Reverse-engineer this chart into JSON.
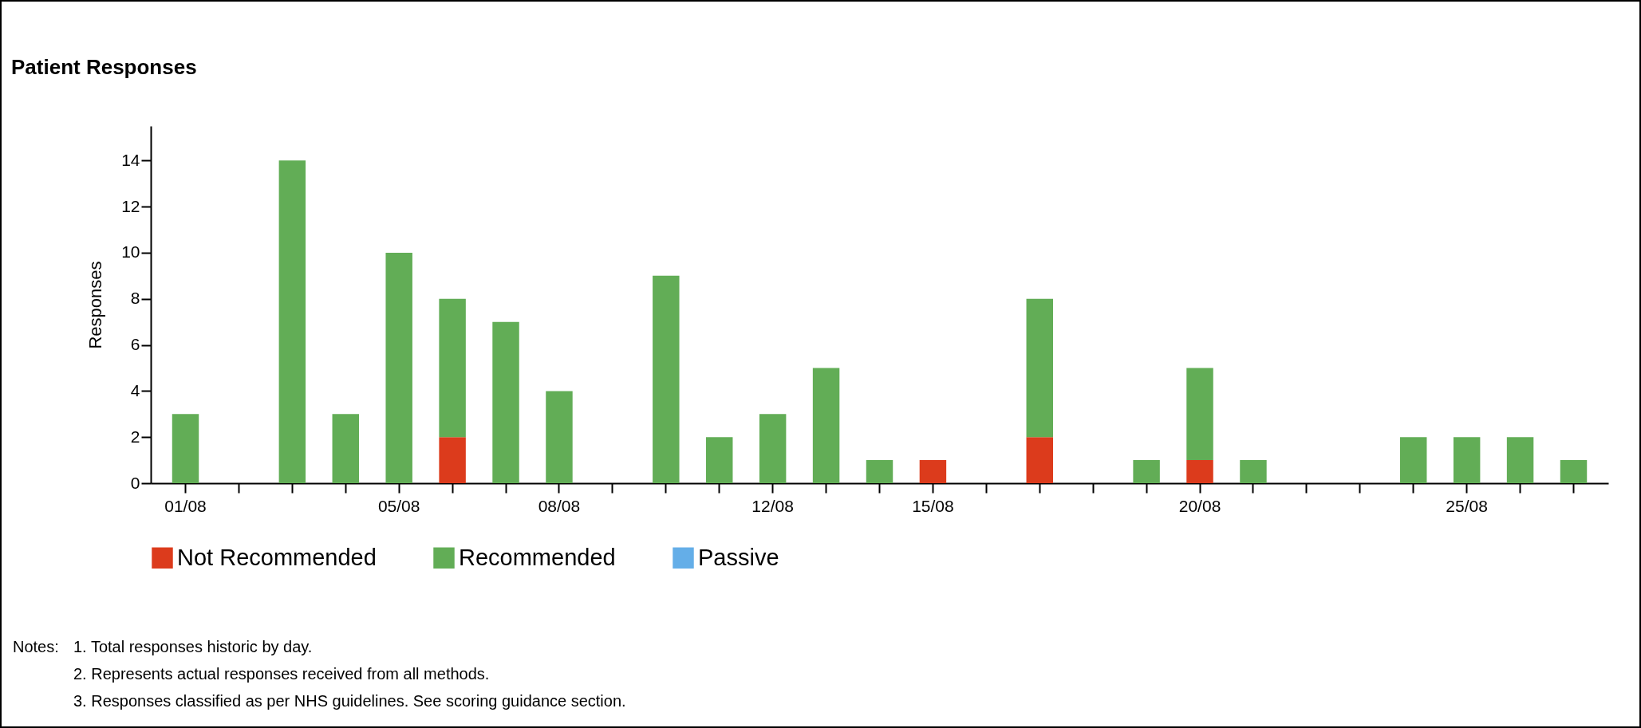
{
  "chart_data": {
    "type": "bar",
    "title": "Patient Responses",
    "ylabel": "Responses",
    "stacked": true,
    "categories": [
      "01/08",
      null,
      null,
      null,
      "05/08",
      null,
      null,
      "08/08",
      null,
      null,
      null,
      "12/08",
      null,
      null,
      "15/08",
      null,
      null,
      null,
      null,
      "20/08",
      null,
      null,
      null,
      null,
      "25/08",
      null,
      null
    ],
    "series": [
      {
        "name": "Not Recommended",
        "color": "#dc3b1c",
        "values": [
          null,
          null,
          null,
          null,
          null,
          2,
          null,
          null,
          null,
          null,
          null,
          null,
          null,
          null,
          1,
          null,
          2,
          null,
          null,
          1,
          null,
          null,
          null,
          null,
          null,
          null,
          null
        ]
      },
      {
        "name": "Recommended",
        "color": "#62ad56",
        "values": [
          3,
          null,
          14,
          3,
          10,
          6,
          7,
          4,
          null,
          9,
          2,
          3,
          5,
          1,
          null,
          null,
          6,
          null,
          1,
          4,
          1,
          null,
          null,
          2,
          2,
          2,
          1
        ]
      },
      {
        "name": "Passive",
        "color": "#64aee8",
        "values": [
          null,
          null,
          null,
          null,
          null,
          null,
          null,
          null,
          null,
          null,
          null,
          null,
          null,
          null,
          null,
          null,
          null,
          null,
          null,
          null,
          null,
          null,
          null,
          null,
          null,
          null,
          null
        ]
      }
    ],
    "ylim": [
      0,
      15.5
    ],
    "yticks": [
      0,
      2,
      4,
      6,
      8,
      10,
      12,
      14
    ],
    "grid": false,
    "legend": "bottom",
    "annotations": [
      "Notes:",
      "1.  Total responses historic by day.",
      "2.  Represents actual responses received from all methods.",
      "3.  Responses classified as per NHS guidelines. See scoring guidance section."
    ]
  }
}
